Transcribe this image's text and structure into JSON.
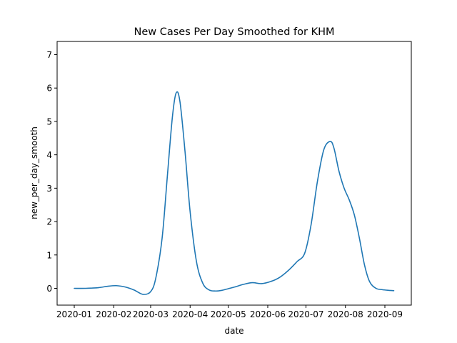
{
  "chart_data": {
    "type": "line",
    "title": "New Cases Per Day Smoothed for KHM",
    "xlabel": "date",
    "ylabel": "new_per_day_smooth",
    "ylim": [
      -0.5,
      7.35
    ],
    "x_ticks": [
      "2020-01",
      "2020-02",
      "2020-03",
      "2020-04",
      "2020-05",
      "2020-06",
      "2020-07",
      "2020-08",
      "2020-09"
    ],
    "y_ticks": [
      0,
      1,
      2,
      3,
      4,
      5,
      6,
      7
    ],
    "grid": false,
    "line_color": "#1f77b4",
    "series": [
      {
        "x": [
          "2020-01-01",
          "2020-01-10",
          "2020-01-20",
          "2020-01-27",
          "2020-02-03",
          "2020-02-10",
          "2020-02-17",
          "2020-02-24",
          "2020-03-01",
          "2020-03-05",
          "2020-03-10",
          "2020-03-14",
          "2020-03-18",
          "2020-03-21",
          "2020-03-24",
          "2020-03-28",
          "2020-04-01",
          "2020-04-06",
          "2020-04-11",
          "2020-04-16",
          "2020-04-21",
          "2020-04-26",
          "2020-05-01",
          "2020-05-06",
          "2020-05-13",
          "2020-05-20",
          "2020-05-27",
          "2020-06-03",
          "2020-06-10",
          "2020-06-17",
          "2020-06-24",
          "2020-06-30",
          "2020-07-05",
          "2020-07-10",
          "2020-07-15",
          "2020-07-20",
          "2020-07-23",
          "2020-07-27",
          "2020-07-31",
          "2020-08-04",
          "2020-08-08",
          "2020-08-12",
          "2020-08-16",
          "2020-08-20",
          "2020-08-25",
          "2020-08-30",
          "2020-09-04",
          "2020-09-08"
        ],
        "y": [
          0.0,
          0.0,
          0.02,
          0.06,
          0.08,
          0.04,
          -0.05,
          -0.18,
          -0.1,
          0.3,
          1.5,
          3.3,
          5.1,
          5.85,
          5.6,
          4.1,
          2.3,
          0.8,
          0.15,
          -0.05,
          -0.08,
          -0.06,
          -0.01,
          0.04,
          0.12,
          0.17,
          0.14,
          0.2,
          0.32,
          0.53,
          0.8,
          1.05,
          1.9,
          3.2,
          4.15,
          4.4,
          4.2,
          3.5,
          3.0,
          2.65,
          2.2,
          1.5,
          0.7,
          0.2,
          0.0,
          -0.04,
          -0.06,
          -0.07
        ]
      }
    ]
  }
}
